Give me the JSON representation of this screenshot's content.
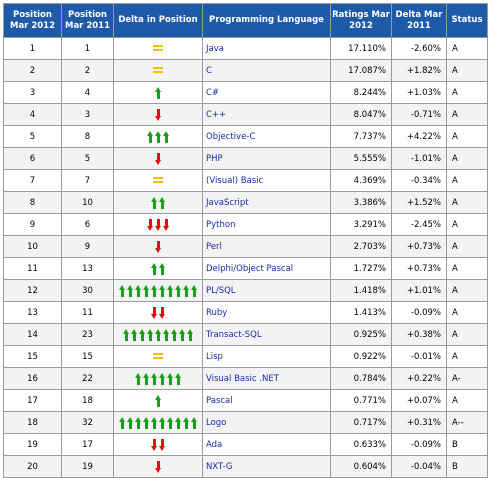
{
  "headers": {
    "pos2012": "Position Mar 2012",
    "pos2011": "Position Mar 2011",
    "delta_pos": "Delta in Position",
    "language": "Programming Language",
    "ratings": "Ratings Mar 2012",
    "delta": "Delta Mar 2011",
    "status": "Status"
  },
  "colors": {
    "header_bg": "#1f5aa8",
    "language_link": "#1a2aa8",
    "up_arrow": "#18a018",
    "down_arrow": "#e01010",
    "equal_sign": "#f2c200"
  },
  "rows": [
    {
      "pos2012": "1",
      "pos2011": "1",
      "trend": "equal",
      "count": 0,
      "language": "Java",
      "rating": "17.110%",
      "delta": "-2.60%",
      "status": "A"
    },
    {
      "pos2012": "2",
      "pos2011": "2",
      "trend": "equal",
      "count": 0,
      "language": "C",
      "rating": "17.087%",
      "delta": "+1.82%",
      "status": "A"
    },
    {
      "pos2012": "3",
      "pos2011": "4",
      "trend": "up",
      "count": 1,
      "language": "C#",
      "rating": "8.244%",
      "delta": "+1.03%",
      "status": "A"
    },
    {
      "pos2012": "4",
      "pos2011": "3",
      "trend": "down",
      "count": 1,
      "language": "C++",
      "rating": "8.047%",
      "delta": "-0.71%",
      "status": "A"
    },
    {
      "pos2012": "5",
      "pos2011": "8",
      "trend": "up",
      "count": 3,
      "language": "Objective-C",
      "rating": "7.737%",
      "delta": "+4.22%",
      "status": "A"
    },
    {
      "pos2012": "6",
      "pos2011": "5",
      "trend": "down",
      "count": 1,
      "language": "PHP",
      "rating": "5.555%",
      "delta": "-1.01%",
      "status": "A"
    },
    {
      "pos2012": "7",
      "pos2011": "7",
      "trend": "equal",
      "count": 0,
      "language": "(Visual) Basic",
      "rating": "4.369%",
      "delta": "-0.34%",
      "status": "A"
    },
    {
      "pos2012": "8",
      "pos2011": "10",
      "trend": "up",
      "count": 2,
      "language": "JavaScript",
      "rating": "3.386%",
      "delta": "+1.52%",
      "status": "A"
    },
    {
      "pos2012": "9",
      "pos2011": "6",
      "trend": "down",
      "count": 3,
      "language": "Python",
      "rating": "3.291%",
      "delta": "-2.45%",
      "status": "A"
    },
    {
      "pos2012": "10",
      "pos2011": "9",
      "trend": "down",
      "count": 1,
      "language": "Perl",
      "rating": "2.703%",
      "delta": "+0.73%",
      "status": "A"
    },
    {
      "pos2012": "11",
      "pos2011": "13",
      "trend": "up",
      "count": 2,
      "language": "Delphi/Object Pascal",
      "rating": "1.727%",
      "delta": "+0.73%",
      "status": "A"
    },
    {
      "pos2012": "12",
      "pos2011": "30",
      "trend": "up",
      "count": 10,
      "language": "PL/SQL",
      "rating": "1.418%",
      "delta": "+1.01%",
      "status": "A"
    },
    {
      "pos2012": "13",
      "pos2011": "11",
      "trend": "down",
      "count": 2,
      "language": "Ruby",
      "rating": "1.413%",
      "delta": "-0.09%",
      "status": "A"
    },
    {
      "pos2012": "14",
      "pos2011": "23",
      "trend": "up",
      "count": 9,
      "language": "Transact-SQL",
      "rating": "0.925%",
      "delta": "+0.38%",
      "status": "A"
    },
    {
      "pos2012": "15",
      "pos2011": "15",
      "trend": "equal",
      "count": 0,
      "language": "Lisp",
      "rating": "0.922%",
      "delta": "-0.01%",
      "status": "A"
    },
    {
      "pos2012": "16",
      "pos2011": "22",
      "trend": "up",
      "count": 6,
      "language": "Visual Basic .NET",
      "rating": "0.784%",
      "delta": "+0.22%",
      "status": "A-"
    },
    {
      "pos2012": "17",
      "pos2011": "18",
      "trend": "up",
      "count": 1,
      "language": "Pascal",
      "rating": "0.771%",
      "delta": "+0.07%",
      "status": "A"
    },
    {
      "pos2012": "18",
      "pos2011": "32",
      "trend": "up",
      "count": 10,
      "language": "Logo",
      "rating": "0.717%",
      "delta": "+0.31%",
      "status": "A--"
    },
    {
      "pos2012": "19",
      "pos2011": "17",
      "trend": "down",
      "count": 2,
      "language": "Ada",
      "rating": "0.633%",
      "delta": "-0.09%",
      "status": "B"
    },
    {
      "pos2012": "20",
      "pos2011": "19",
      "trend": "down",
      "count": 1,
      "language": "NXT-G",
      "rating": "0.604%",
      "delta": "-0.04%",
      "status": "B"
    }
  ]
}
